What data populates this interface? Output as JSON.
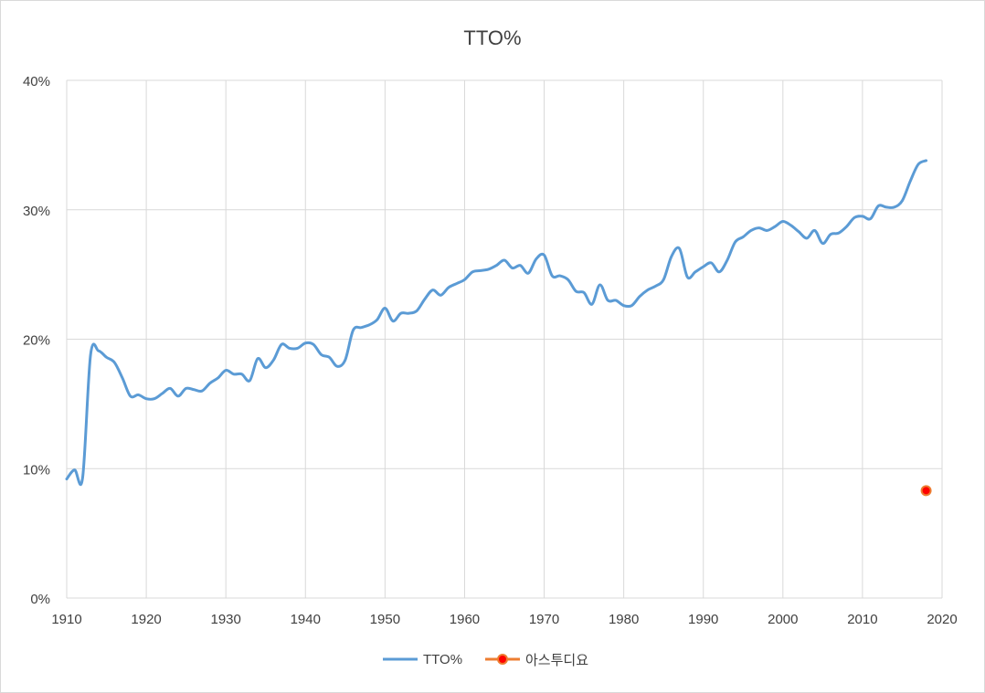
{
  "chart_data": {
    "type": "line",
    "title": "TTO%",
    "xlabel": "",
    "ylabel": "",
    "xlim": [
      1910,
      2020
    ],
    "ylim": [
      0,
      0.4
    ],
    "x_ticks": [
      1910,
      1920,
      1930,
      1940,
      1950,
      1960,
      1970,
      1980,
      1990,
      2000,
      2010,
      2020
    ],
    "x_tick_labels": [
      "1910",
      "1920",
      "1930",
      "1940",
      "1950",
      "1960",
      "1970",
      "1980",
      "1990",
      "2000",
      "2010",
      "2020"
    ],
    "y_ticks": [
      0,
      0.1,
      0.2,
      0.3,
      0.4
    ],
    "y_tick_labels": [
      "0%",
      "10%",
      "20%",
      "30%",
      "40%"
    ],
    "grid": true,
    "legend_position": "bottom",
    "series": [
      {
        "name": "TTO%",
        "color": "#5b9bd5",
        "marker": "none",
        "x": [
          1910,
          1911,
          1912,
          1913,
          1914,
          1915,
          1916,
          1917,
          1918,
          1919,
          1920,
          1921,
          1922,
          1923,
          1924,
          1925,
          1926,
          1927,
          1928,
          1929,
          1930,
          1931,
          1932,
          1933,
          1934,
          1935,
          1936,
          1937,
          1938,
          1939,
          1940,
          1941,
          1942,
          1943,
          1944,
          1945,
          1946,
          1947,
          1948,
          1949,
          1950,
          1951,
          1952,
          1953,
          1954,
          1955,
          1956,
          1957,
          1958,
          1959,
          1960,
          1961,
          1962,
          1963,
          1964,
          1965,
          1966,
          1967,
          1968,
          1969,
          1970,
          1971,
          1972,
          1973,
          1974,
          1975,
          1976,
          1977,
          1978,
          1979,
          1980,
          1981,
          1982,
          1983,
          1984,
          1985,
          1986,
          1987,
          1988,
          1989,
          1990,
          1991,
          1992,
          1993,
          1994,
          1995,
          1996,
          1997,
          1998,
          1999,
          2000,
          2001,
          2002,
          2003,
          2004,
          2005,
          2006,
          2007,
          2008,
          2009,
          2010,
          2011,
          2012,
          2013,
          2014,
          2015,
          2016,
          2017,
          2018
        ],
        "values": [
          0.092,
          0.099,
          0.093,
          0.188,
          0.191,
          0.186,
          0.182,
          0.17,
          0.156,
          0.157,
          0.154,
          0.154,
          0.158,
          0.162,
          0.156,
          0.162,
          0.161,
          0.16,
          0.166,
          0.17,
          0.176,
          0.173,
          0.173,
          0.168,
          0.185,
          0.178,
          0.184,
          0.196,
          0.193,
          0.193,
          0.197,
          0.196,
          0.188,
          0.186,
          0.179,
          0.184,
          0.207,
          0.209,
          0.211,
          0.215,
          0.224,
          0.214,
          0.22,
          0.22,
          0.222,
          0.231,
          0.238,
          0.234,
          0.24,
          0.243,
          0.246,
          0.252,
          0.253,
          0.254,
          0.257,
          0.261,
          0.255,
          0.257,
          0.251,
          0.262,
          0.265,
          0.249,
          0.249,
          0.246,
          0.237,
          0.236,
          0.227,
          0.242,
          0.23,
          0.23,
          0.226,
          0.226,
          0.233,
          0.238,
          0.241,
          0.246,
          0.264,
          0.27,
          0.248,
          0.252,
          0.256,
          0.259,
          0.252,
          0.261,
          0.275,
          0.279,
          0.284,
          0.286,
          0.284,
          0.287,
          0.291,
          0.288,
          0.283,
          0.278,
          0.284,
          0.274,
          0.281,
          0.282,
          0.287,
          0.294,
          0.295,
          0.293,
          0.303,
          0.302,
          0.302,
          0.307,
          0.322,
          0.335,
          0.338
        ]
      },
      {
        "name": "아스투디요",
        "color": "#ed7d31",
        "marker_color": "#ff0000",
        "marker": "circle",
        "x": [
          2018
        ],
        "values": [
          0.083
        ]
      }
    ]
  }
}
